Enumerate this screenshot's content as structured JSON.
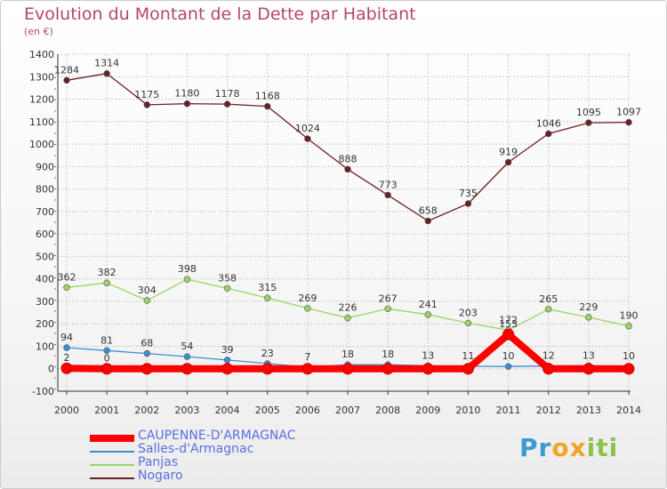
{
  "header": {
    "title": "Evolution du Montant de la Dette par Habitant",
    "unit": "(en €)"
  },
  "brand": {
    "name": "Proxiti",
    "letters": [
      "P",
      "r",
      "o",
      "x",
      "i",
      "t",
      "i"
    ],
    "letter_colors": [
      "#3d9ad1",
      "#3d9ad1",
      "#f2a427",
      "#f2a427",
      "#8bc34a",
      "#8bc34a",
      "#8bc34a"
    ]
  },
  "chart_data": {
    "type": "line",
    "title": "Evolution du Montant de la Dette par Habitant",
    "subtitle": "(en €)",
    "xlabel": "",
    "ylabel": "",
    "x": [
      "2000",
      "2001",
      "2002",
      "2003",
      "2004",
      "2005",
      "2006",
      "2007",
      "2008",
      "2009",
      "2010",
      "2011",
      "2012",
      "2013",
      "2014"
    ],
    "ylim": [
      -100,
      1400
    ],
    "yticks": [
      -100,
      0,
      100,
      200,
      300,
      400,
      500,
      600,
      700,
      800,
      900,
      1000,
      1100,
      1200,
      1300,
      1400
    ],
    "grid": true,
    "legend_position": "bottom-left",
    "series": [
      {
        "name": "CAUPENNE-D'ARMAGNAC",
        "color": "#ff0000",
        "values": [
          2,
          0,
          0,
          0,
          0,
          0,
          0,
          0,
          0,
          0,
          0,
          153,
          0,
          0,
          0
        ],
        "labels": [
          "2",
          "0",
          "",
          "",
          "",
          "",
          "",
          "",
          "",
          "",
          "",
          "153",
          "",
          "",
          ""
        ],
        "style": "thick"
      },
      {
        "name": "Salles-d'Armagnac",
        "color": "#3d8fd1",
        "values": [
          94,
          81,
          68,
          54,
          39,
          23,
          7,
          18,
          18,
          13,
          11,
          10,
          12,
          13,
          10
        ],
        "labels": [
          "94",
          "81",
          "68",
          "54",
          "39",
          "23",
          "7",
          "18",
          "18",
          "13",
          "11",
          "10",
          "12",
          "13",
          "10"
        ],
        "style": "thin"
      },
      {
        "name": "Panjas",
        "color": "#99d466",
        "values": [
          362,
          382,
          304,
          398,
          358,
          315,
          269,
          226,
          267,
          241,
          203,
          172,
          265,
          229,
          190
        ],
        "labels": [
          "362",
          "382",
          "304",
          "398",
          "358",
          "315",
          "269",
          "226",
          "267",
          "241",
          "203",
          "172",
          "265",
          "229",
          "190"
        ],
        "style": "thin"
      },
      {
        "name": "Nogaro",
        "color": "#6b1e24",
        "values": [
          1284,
          1314,
          1175,
          1180,
          1178,
          1168,
          1024,
          888,
          773,
          658,
          735,
          919,
          1046,
          1095,
          1097
        ],
        "labels": [
          "1284",
          "1314",
          "1175",
          "1180",
          "1178",
          "1168",
          "1024",
          "888",
          "773",
          "658",
          "735",
          "919",
          "1046",
          "1095",
          "1097"
        ],
        "style": "thin"
      }
    ]
  }
}
